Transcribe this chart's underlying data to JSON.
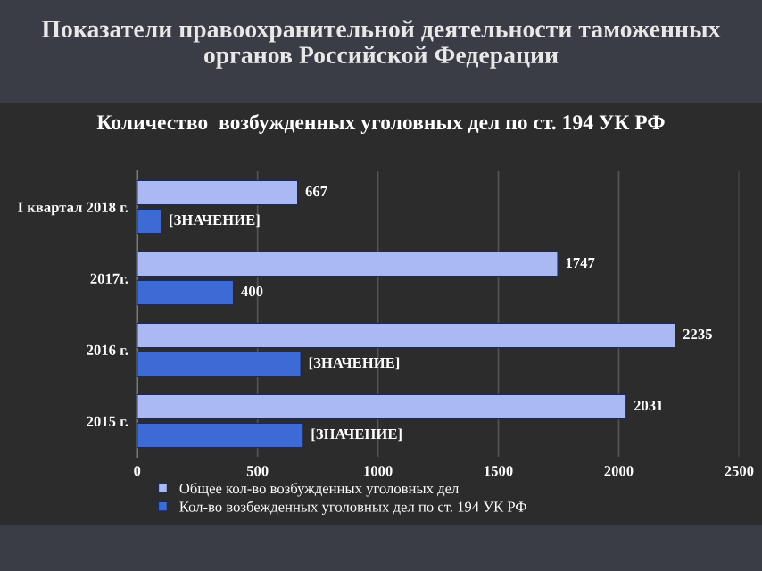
{
  "chart_data": {
    "type": "bar",
    "orientation": "horizontal",
    "title": "Показатели правоохранительной деятельности таможенных органов Российской Федерации",
    "subtitle": "Количество  возбужденных уголовных дел по ст. 194 УК РФ",
    "categories": [
      "I квартал 2018 г.",
      "2017г.",
      "2016 г.",
      "2015 г."
    ],
    "series": [
      {
        "name": "Общее кол-во возбужденных уголовных дел",
        "color": "#aab9f2",
        "values": [
          667,
          1747,
          2235,
          2031
        ],
        "value_labels": [
          "667",
          "1747",
          "2235",
          "2031"
        ]
      },
      {
        "name": "Кол-во возбежденных уголовных дел по ст. 194 УК РФ",
        "color": "#3d6bd6",
        "values": [
          100,
          400,
          680,
          690
        ],
        "value_labels": [
          "[ЗНАЧЕНИЕ]",
          "400",
          "[ЗНАЧЕНИЕ]",
          "[ЗНАЧЕНИЕ]"
        ]
      }
    ],
    "xlim": [
      0,
      2500
    ],
    "xticks": [
      0,
      500,
      1000,
      1500,
      2000,
      2500
    ],
    "grid": "x",
    "legend": "bottom"
  }
}
